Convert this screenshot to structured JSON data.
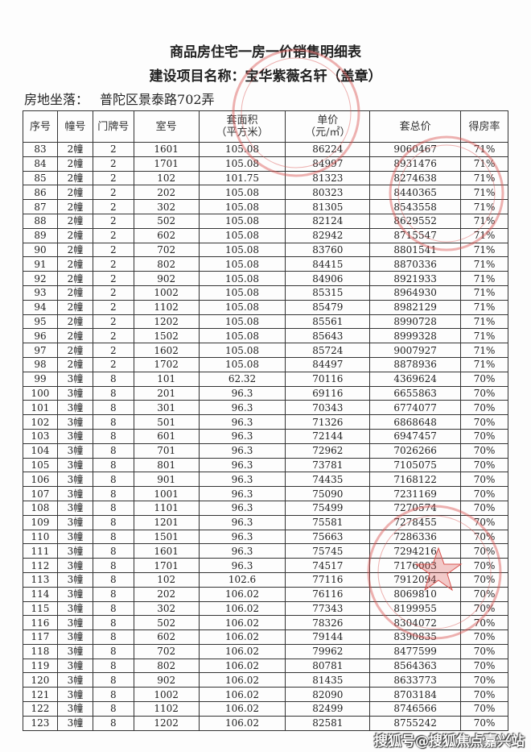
{
  "title": "商品房住宅一房一价销售明细表",
  "subtitle": "建设项目名称：宝华紫薇名轩（盖章）",
  "location": {
    "label": "房地坐落：",
    "value": "普陀区景泰路702弄"
  },
  "columns": [
    "序号",
    "幢号",
    "门牌号",
    "室号",
    "套面积\n（平方米）",
    "单价\n（元/㎡）",
    "套总价",
    "得房率"
  ],
  "rows": [
    [
      "83",
      "2幢",
      "2",
      "1601",
      "105.08",
      "86224",
      "9060467",
      "71%"
    ],
    [
      "84",
      "2幢",
      "2",
      "1701",
      "105.08",
      "84997",
      "8931476",
      "71%"
    ],
    [
      "85",
      "2幢",
      "2",
      "102",
      "101.75",
      "81323",
      "8274638",
      "71%"
    ],
    [
      "86",
      "2幢",
      "2",
      "202",
      "105.08",
      "80323",
      "8440365",
      "71%"
    ],
    [
      "87",
      "2幢",
      "2",
      "302",
      "105.08",
      "81305",
      "8543558",
      "71%"
    ],
    [
      "88",
      "2幢",
      "2",
      "502",
      "105.08",
      "82124",
      "8629552",
      "71%"
    ],
    [
      "89",
      "2幢",
      "2",
      "602",
      "105.08",
      "82942",
      "8715547",
      "71%"
    ],
    [
      "90",
      "2幢",
      "2",
      "702",
      "105.08",
      "83760",
      "8801541",
      "71%"
    ],
    [
      "91",
      "2幢",
      "2",
      "802",
      "105.08",
      "84415",
      "8870336",
      "71%"
    ],
    [
      "92",
      "2幢",
      "2",
      "902",
      "105.08",
      "84906",
      "8921933",
      "71%"
    ],
    [
      "93",
      "2幢",
      "2",
      "1002",
      "105.08",
      "85315",
      "8964930",
      "71%"
    ],
    [
      "94",
      "2幢",
      "2",
      "1102",
      "105.08",
      "85479",
      "8982129",
      "71%"
    ],
    [
      "95",
      "2幢",
      "2",
      "1202",
      "105.08",
      "85561",
      "8990728",
      "71%"
    ],
    [
      "96",
      "2幢",
      "2",
      "1502",
      "105.08",
      "85643",
      "8999328",
      "71%"
    ],
    [
      "97",
      "2幢",
      "2",
      "1602",
      "105.08",
      "85724",
      "9007927",
      "71%"
    ],
    [
      "98",
      "2幢",
      "2",
      "1702",
      "105.08",
      "84497",
      "8878936",
      "71%"
    ],
    [
      "99",
      "3幢",
      "8",
      "101",
      "62.32",
      "70116",
      "4369624",
      "70%"
    ],
    [
      "100",
      "3幢",
      "8",
      "201",
      "96.3",
      "69116",
      "6655863",
      "70%"
    ],
    [
      "101",
      "3幢",
      "8",
      "301",
      "96.3",
      "70343",
      "6774077",
      "70%"
    ],
    [
      "102",
      "3幢",
      "8",
      "501",
      "96.3",
      "71326",
      "6868648",
      "70%"
    ],
    [
      "103",
      "3幢",
      "8",
      "601",
      "96.3",
      "72144",
      "6947457",
      "70%"
    ],
    [
      "104",
      "3幢",
      "8",
      "701",
      "96.3",
      "72962",
      "7026266",
      "70%"
    ],
    [
      "105",
      "3幢",
      "8",
      "801",
      "96.3",
      "73781",
      "7105075",
      "70%"
    ],
    [
      "106",
      "3幢",
      "8",
      "901",
      "96.3",
      "74435",
      "7168122",
      "70%"
    ],
    [
      "107",
      "3幢",
      "8",
      "1001",
      "96.3",
      "75090",
      "7231169",
      "70%"
    ],
    [
      "108",
      "3幢",
      "8",
      "1101",
      "96.3",
      "75499",
      "7270574",
      "70%"
    ],
    [
      "109",
      "3幢",
      "8",
      "1201",
      "96.3",
      "75581",
      "7278455",
      "70%"
    ],
    [
      "110",
      "3幢",
      "8",
      "1501",
      "96.3",
      "75663",
      "7286336",
      "70%"
    ],
    [
      "111",
      "3幢",
      "8",
      "1601",
      "96.3",
      "75745",
      "7294216",
      "70%"
    ],
    [
      "112",
      "3幢",
      "8",
      "1701",
      "96.3",
      "74517",
      "7176003",
      "70%"
    ],
    [
      "113",
      "3幢",
      "8",
      "102",
      "102.6",
      "77116",
      "7912094",
      "70%"
    ],
    [
      "114",
      "3幢",
      "8",
      "202",
      "106.02",
      "76116",
      "8069810",
      "70%"
    ],
    [
      "115",
      "3幢",
      "8",
      "302",
      "106.02",
      "77343",
      "8199955",
      "70%"
    ],
    [
      "116",
      "3幢",
      "8",
      "502",
      "106.02",
      "78326",
      "8304072",
      "70%"
    ],
    [
      "117",
      "3幢",
      "8",
      "602",
      "106.02",
      "79144",
      "8390835",
      "70%"
    ],
    [
      "118",
      "3幢",
      "8",
      "702",
      "106.02",
      "79962",
      "8477599",
      "70%"
    ],
    [
      "119",
      "3幢",
      "8",
      "802",
      "106.02",
      "80781",
      "8564363",
      "70%"
    ],
    [
      "120",
      "3幢",
      "8",
      "902",
      "106.02",
      "81435",
      "8633773",
      "70%"
    ],
    [
      "121",
      "3幢",
      "8",
      "1002",
      "106.02",
      "82090",
      "8703184",
      "70%"
    ],
    [
      "122",
      "3幢",
      "8",
      "1102",
      "106.02",
      "82499",
      "8746566",
      "70%"
    ],
    [
      "123",
      "3幢",
      "8",
      "1202",
      "106.02",
      "82581",
      "8755242",
      "70%"
    ]
  ],
  "seal_color": "#d9534f",
  "watermark": "搜狐号@搜狐焦点嘉兴站"
}
